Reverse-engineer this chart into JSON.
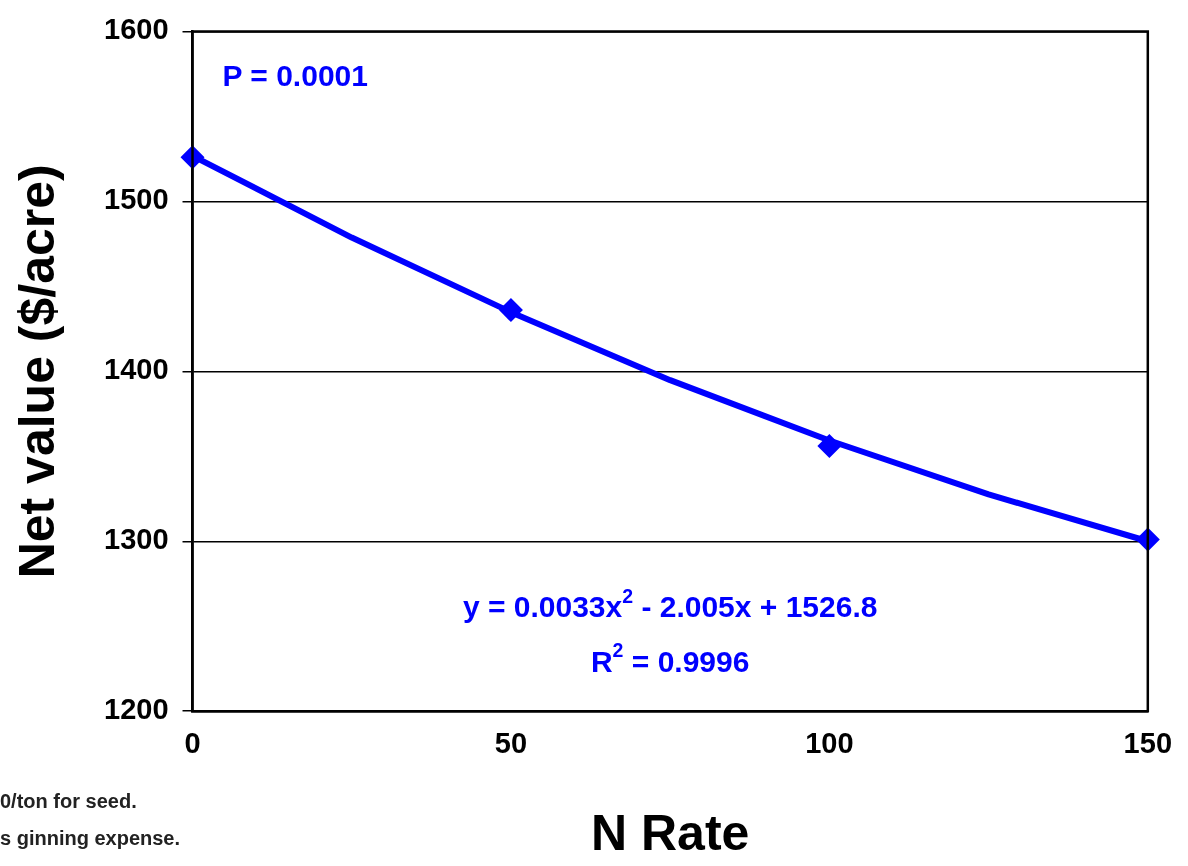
{
  "chart_data": {
    "type": "scatter",
    "xlabel": "N Rate",
    "ylabel": "Net value ($/acre)",
    "xlim": [
      0,
      150
    ],
    "xticks": [
      0,
      50,
      100,
      150
    ],
    "ylim": [
      1200,
      1600
    ],
    "yticks": [
      1200,
      1300,
      1400,
      1500,
      1600
    ],
    "grid": "y",
    "legend": false,
    "marker": "diamond",
    "series": [
      {
        "type": "scatter",
        "color": "#0000ff",
        "x": [
          0,
          50,
          100,
          150
        ],
        "values": [
          1526,
          1436,
          1356,
          1301
        ]
      },
      {
        "type": "line",
        "color": "#0000ff",
        "marker": "none",
        "line_style": "solid",
        "x": [
          0,
          25,
          50,
          75,
          100,
          125,
          150
        ],
        "values": [
          1526.8,
          1478.7,
          1434.8,
          1394.8,
          1359.3,
          1327.6,
          1300.0
        ]
      }
    ],
    "annotations": [
      "P = 0.0001",
      "y = 0.0033x$^{2}$ - 2.005x + 1526.8",
      "R$^{2}$ = 0.9996",
      "0/ton for seed.",
      "s ginning expense."
    ]
  }
}
